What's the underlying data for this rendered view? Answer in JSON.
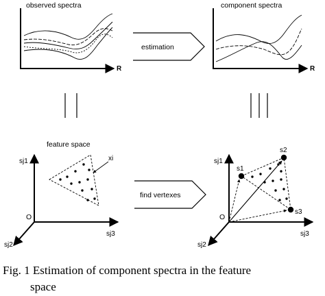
{
  "panels": {
    "observed_title": "observed spectra",
    "component_title": "component spectra",
    "observed_axis_label": "R",
    "component_axis_label": "R",
    "estimation_label": "estimation",
    "feature_title": "feature space",
    "find_vertexes_label": "find vertexes"
  },
  "feature_space": {
    "axis_sj1": "sj1",
    "axis_sj2": "sj2",
    "axis_sj3": "sj3",
    "origin": "O",
    "point_label": "xi"
  },
  "vertex_space": {
    "axis_sj1": "sj1",
    "axis_sj2": "sj2",
    "axis_sj3": "sj3",
    "origin": "O",
    "vertex_s1": "s1",
    "vertex_s2": "s2",
    "vertex_s3": "s3"
  },
  "caption": {
    "line1": "Fig.  1  Estimation of component spectra in the feature",
    "line2": "space"
  }
}
